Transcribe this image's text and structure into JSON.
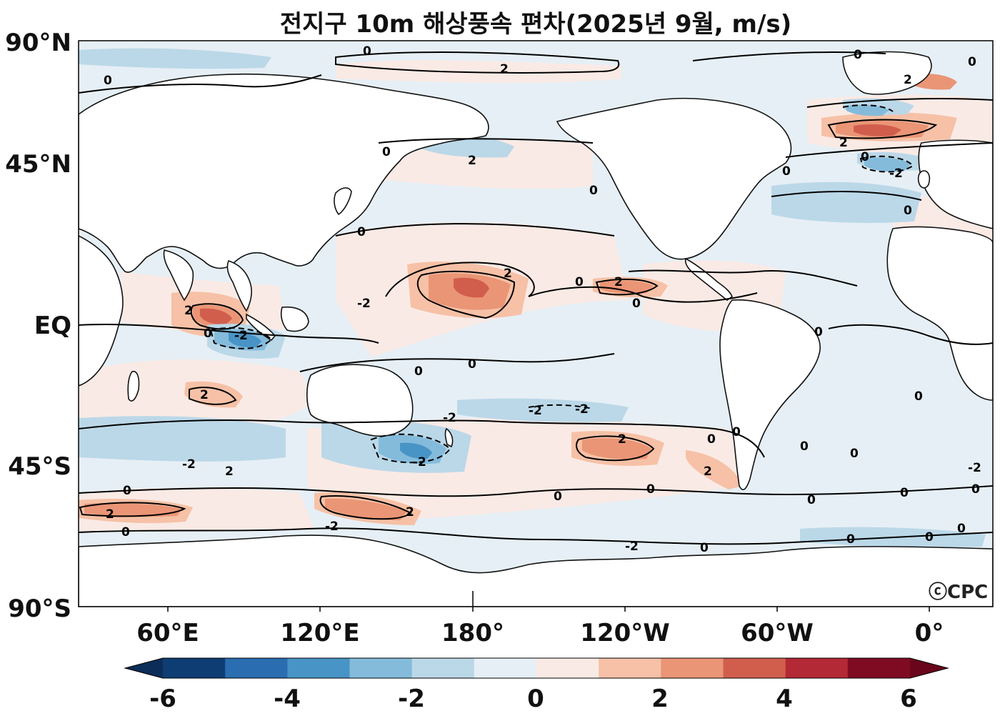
{
  "title": "전지구 10m 해상풍속 편차(2025년 9월, m/s)",
  "logo": "ⓒCPC",
  "lat_labels": [
    "90°N",
    "45°N",
    "EQ",
    "45°S",
    "90°S"
  ],
  "lon_labels": [
    "60°E",
    "120°E",
    "180°",
    "120°W",
    "60°W",
    "0°"
  ],
  "colorbar": {
    "tick_labels": [
      "-6",
      "-4",
      "-2",
      "0",
      "2",
      "4",
      "6"
    ],
    "levels": [
      -6,
      -5,
      -4,
      -3,
      -2,
      -1,
      0,
      1,
      2,
      3,
      4,
      5,
      6
    ],
    "colors": [
      "#0e3d73",
      "#2a6db0",
      "#4894c6",
      "#84bbdb",
      "#bbd8e8",
      "#e6eff5",
      "#faeae5",
      "#f6c1a6",
      "#ea9576",
      "#d15e4d",
      "#b32935",
      "#7f0b22"
    ],
    "under_color": "#0c2d57",
    "over_color": "#69061b"
  },
  "contour_labels": [
    "0",
    "2",
    "-2"
  ]
}
